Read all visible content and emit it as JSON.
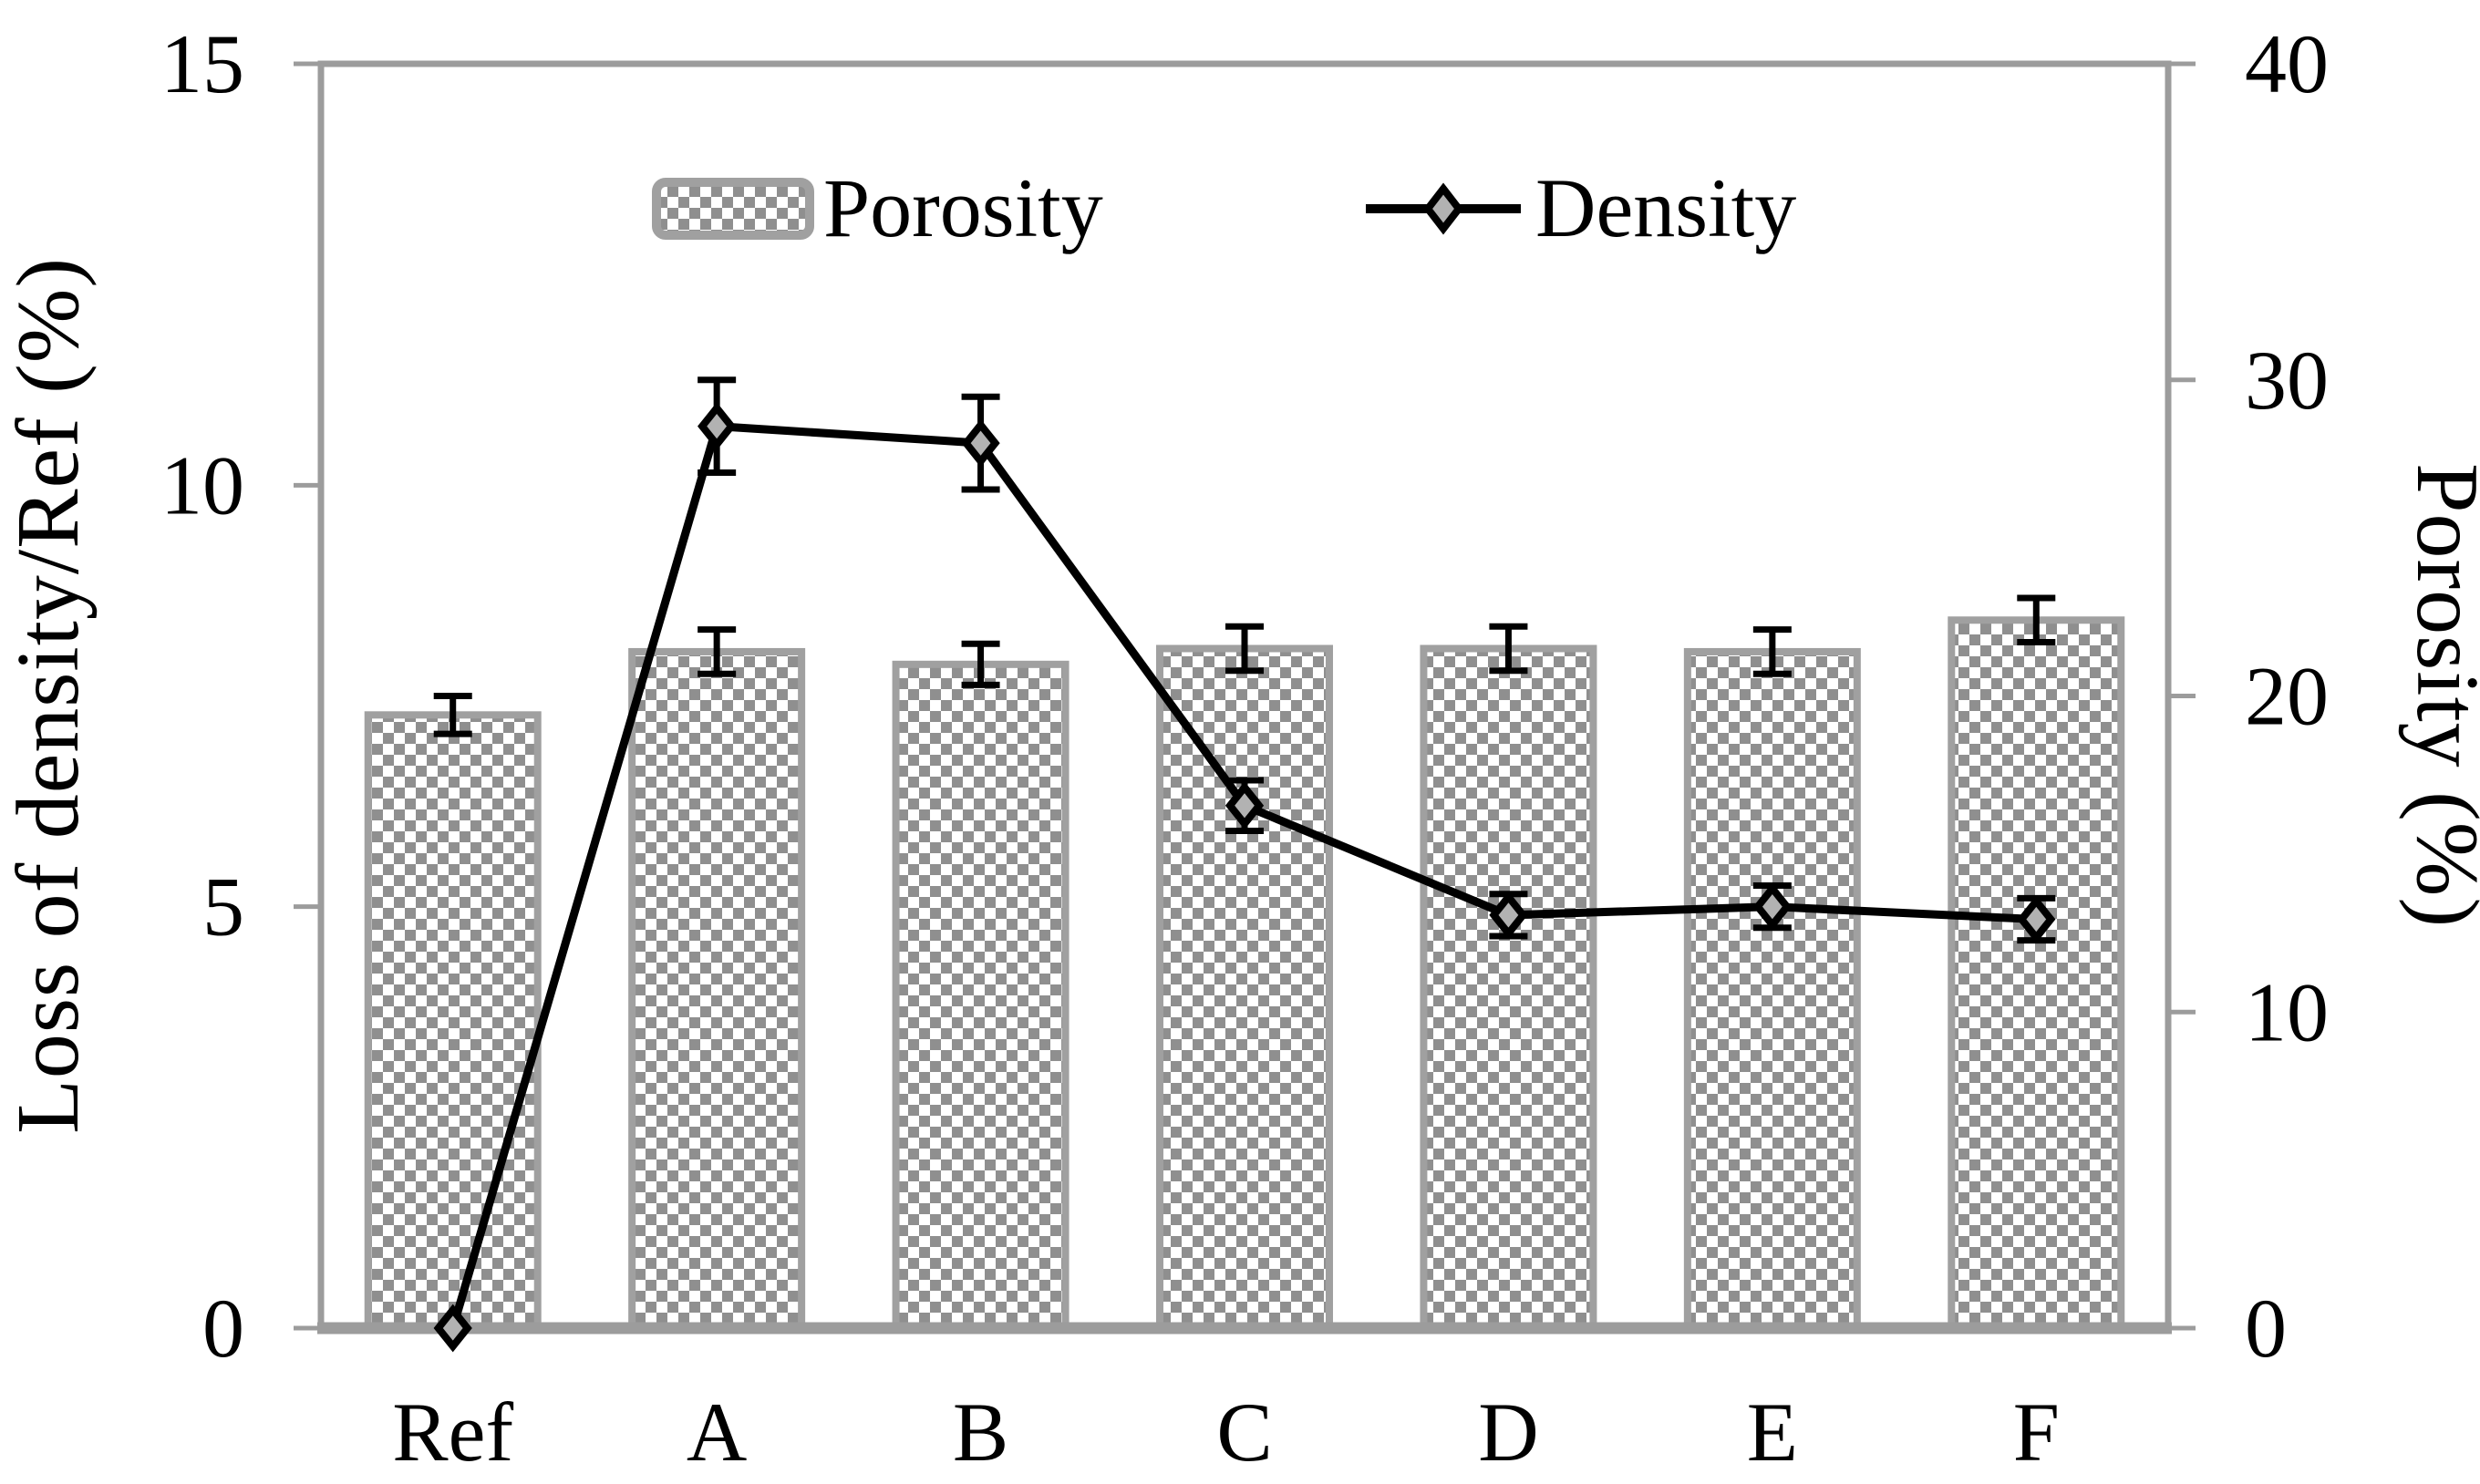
{
  "chart_data": {
    "type": "bar+line combo",
    "categories": [
      "Ref",
      "A",
      "B",
      "C",
      "D",
      "E",
      "F"
    ],
    "series": [
      {
        "name": "Porosity",
        "type": "bar",
        "axis": "right",
        "values": [
          19.4,
          21.4,
          21.0,
          21.5,
          21.5,
          21.4,
          22.4
        ],
        "errors": [
          0.6,
          0.7,
          0.65,
          0.7,
          0.7,
          0.7,
          0.7
        ]
      },
      {
        "name": "Density",
        "type": "line",
        "axis": "left",
        "values": [
          0,
          10.7,
          10.5,
          6.2,
          4.9,
          5.0,
          4.85
        ],
        "errors": [
          0,
          0.55,
          0.55,
          0.3,
          0.25,
          0.25,
          0.25
        ]
      }
    ],
    "left_axis": {
      "title": "Loss of density/Ref (%)",
      "min": 0,
      "max": 15,
      "ticks": [
        "0",
        "5",
        "10",
        "15"
      ]
    },
    "right_axis": {
      "title": "Porosity (%)",
      "min": 0,
      "max": 40,
      "ticks": [
        "0",
        "10",
        "20",
        "30",
        "40"
      ]
    },
    "legend": {
      "items": [
        {
          "label": "Porosity",
          "marker": "pattern-swatch"
        },
        {
          "label": "Density",
          "marker": "line-diamond"
        }
      ],
      "position": "top-inside"
    },
    "grid": false
  },
  "colors": {
    "axis": "#9c9c9c",
    "bar_border": "#a0a0a0",
    "bar_pattern": "#8f8f8f",
    "bar_background": "#ffffff",
    "line": "#000000",
    "error_bar": "#000000",
    "marker_fill": "#b2b2b2",
    "marker_stroke": "#000000",
    "text": "#000000"
  }
}
